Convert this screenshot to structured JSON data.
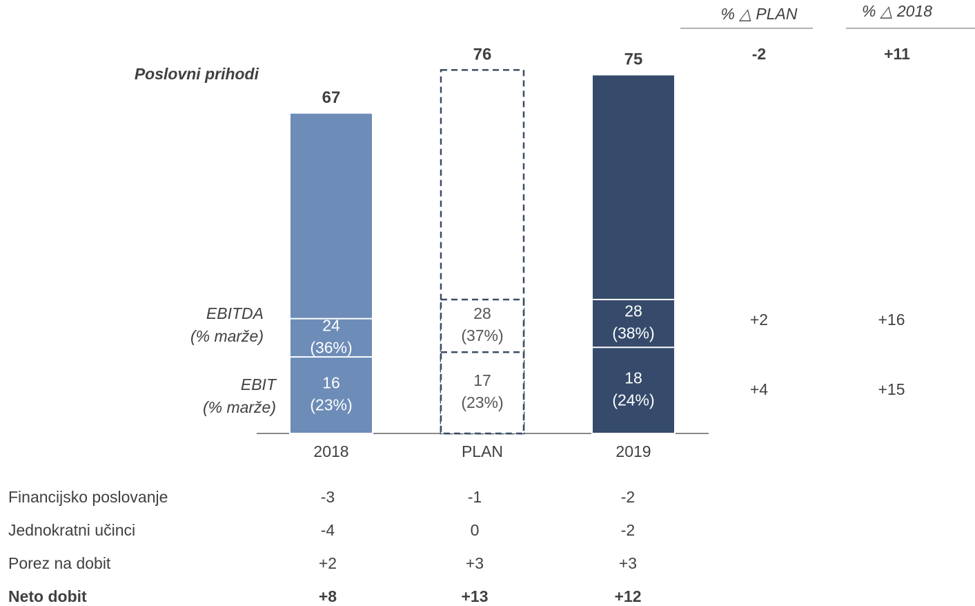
{
  "chart_data": {
    "type": "bar",
    "categories": [
      "2018",
      "PLAN",
      "2019"
    ],
    "colors": [
      "#6d8cb8",
      "#ffffff",
      "#364b6b"
    ],
    "outline_color": "#3a4c66",
    "styles": [
      "solid",
      "dashed",
      "solid"
    ],
    "series": [
      {
        "name": "Poslovni prihodi",
        "values": [
          67,
          76,
          75
        ]
      },
      {
        "name": "EBITDA",
        "sublabel": "(% marže)",
        "values": [
          24,
          28,
          28
        ],
        "margins": [
          36,
          37,
          38
        ],
        "margin_labels": [
          "(36%)",
          "(37%)",
          "(38%)"
        ]
      },
      {
        "name": "EBIT",
        "sublabel": "(% marže)",
        "values": [
          16,
          17,
          18
        ],
        "margins": [
          23,
          23,
          24
        ],
        "margin_labels": [
          "(23%)",
          "(23%)",
          "(24%)"
        ]
      }
    ],
    "changes": {
      "headers": [
        "% △ PLAN",
        "% △ 2018"
      ],
      "rows": [
        [
          "-2",
          "+11"
        ],
        [
          "+2",
          "+16"
        ],
        [
          "+4",
          "+15"
        ]
      ]
    },
    "table": {
      "rows": [
        [
          "Financijsko poslovanje",
          "-3",
          "-1",
          "-2"
        ],
        [
          "Jednokratni učinci",
          "-4",
          "0",
          "-2"
        ],
        [
          "Porez na dobit",
          "+2",
          "+3",
          "+3"
        ],
        [
          "Neto dobit",
          "+8",
          "+13",
          "+12"
        ]
      ]
    }
  }
}
